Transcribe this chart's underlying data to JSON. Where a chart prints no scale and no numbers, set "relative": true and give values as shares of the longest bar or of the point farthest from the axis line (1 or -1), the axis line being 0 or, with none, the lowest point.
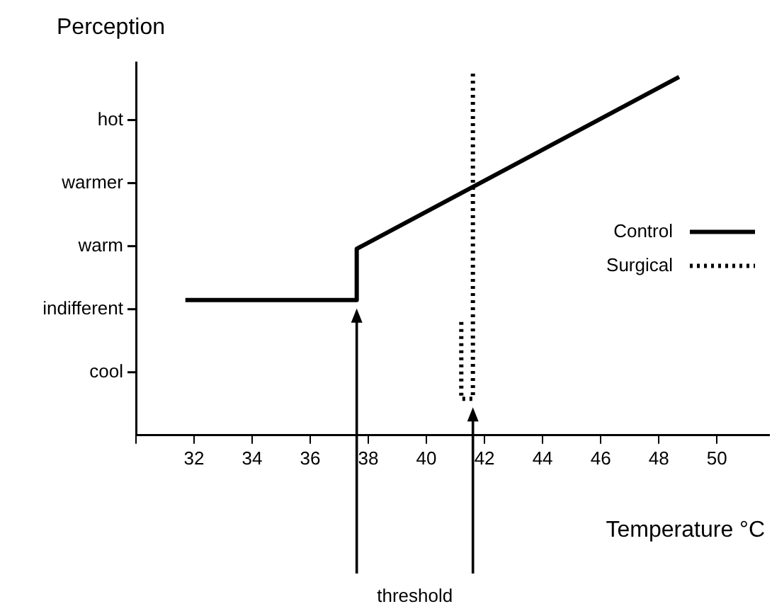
{
  "chart_data": {
    "type": "line",
    "xlabel": "Temperature °C",
    "ylabel": "Perception",
    "relative": true,
    "xlim": [
      30,
      51.8
    ],
    "xticks": [
      {
        "value": 30,
        "label": null
      },
      32,
      34,
      36,
      38,
      40,
      42,
      44,
      46,
      48,
      50
    ],
    "series": [
      {
        "name": "Control",
        "color": "#000000",
        "line_style": "solid",
        "x": [
          31.7,
          37.6,
          37.6,
          48.7
        ],
        "values": [
          0.37,
          0.37,
          0.51,
          0.98
        ]
      },
      {
        "name": "Surgical",
        "color": "#000000",
        "line_style": "dotted",
        "x": [
          41.2,
          41.2,
          41.6,
          41.6
        ],
        "values": [
          0.31,
          0.1,
          0.1,
          1
        ]
      }
    ],
    "annotations": [
      "threshold",
      "cool",
      "indifferent",
      "warm",
      "warmer",
      "hot"
    ],
    "marker": "none",
    "grid": false,
    "legend": "right"
  }
}
